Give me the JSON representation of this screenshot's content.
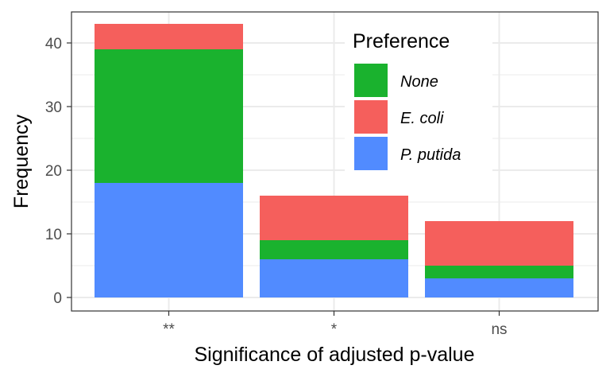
{
  "chart_data": {
    "type": "bar",
    "stacked": true,
    "categories": [
      "**",
      "*",
      "ns"
    ],
    "series": [
      {
        "name": "P. putida",
        "values": [
          18,
          6,
          3
        ],
        "color": "#518BFF"
      },
      {
        "name": "None",
        "values": [
          21,
          3,
          2
        ],
        "color": "#1AB22E"
      },
      {
        "name": "E. coli",
        "values": [
          4,
          7,
          7
        ],
        "color": "#F55F5C"
      }
    ],
    "xlabel": "Significance of adjusted p-value",
    "ylabel": "Frequency",
    "ylim": [
      0,
      45
    ],
    "yticks": [
      0,
      10,
      20,
      30,
      40
    ],
    "grid": true,
    "legend": {
      "title": "Preference",
      "position": "top-right-inside",
      "entries": [
        {
          "label": "None",
          "color": "#1AB22E"
        },
        {
          "label": "E. coli",
          "color": "#F55F5C"
        },
        {
          "label": "P. putida",
          "color": "#518BFF"
        }
      ]
    }
  }
}
